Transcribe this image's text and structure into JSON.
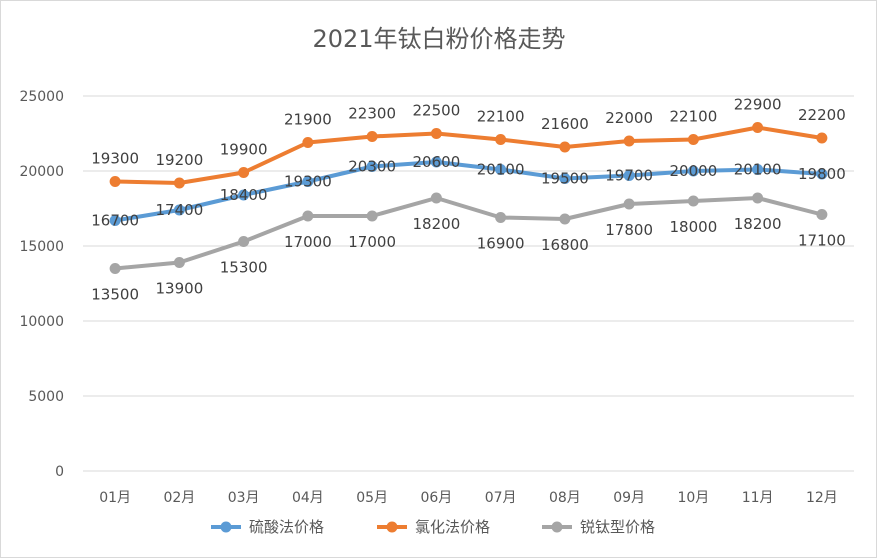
{
  "chart_data": {
    "type": "line",
    "title": "2021年钛白粉价格走势",
    "categories": [
      "01月",
      "02月",
      "03月",
      "04月",
      "05月",
      "06月",
      "07月",
      "08月",
      "09月",
      "10月",
      "11月",
      "12月"
    ],
    "ylim": [
      0,
      25000
    ],
    "yticks": [
      0,
      5000,
      10000,
      15000,
      20000,
      25000
    ],
    "grid": true,
    "legend": "bottom",
    "series": [
      {
        "name": "硫酸法价格",
        "color": "#5b9bd5",
        "values": [
          16700,
          17400,
          18400,
          19300,
          20300,
          20600,
          20100,
          19500,
          19700,
          20000,
          20100,
          19800
        ]
      },
      {
        "name": "氯化法价格",
        "color": "#ed7d31",
        "values": [
          19300,
          19200,
          19900,
          21900,
          22300,
          22500,
          22100,
          21600,
          22000,
          22100,
          22900,
          22200
        ]
      },
      {
        "name": "锐钛型价格",
        "color": "#a5a5a5",
        "values": [
          13500,
          13900,
          15300,
          17000,
          17000,
          18200,
          16900,
          16800,
          17800,
          18000,
          18200,
          17100
        ]
      }
    ]
  }
}
